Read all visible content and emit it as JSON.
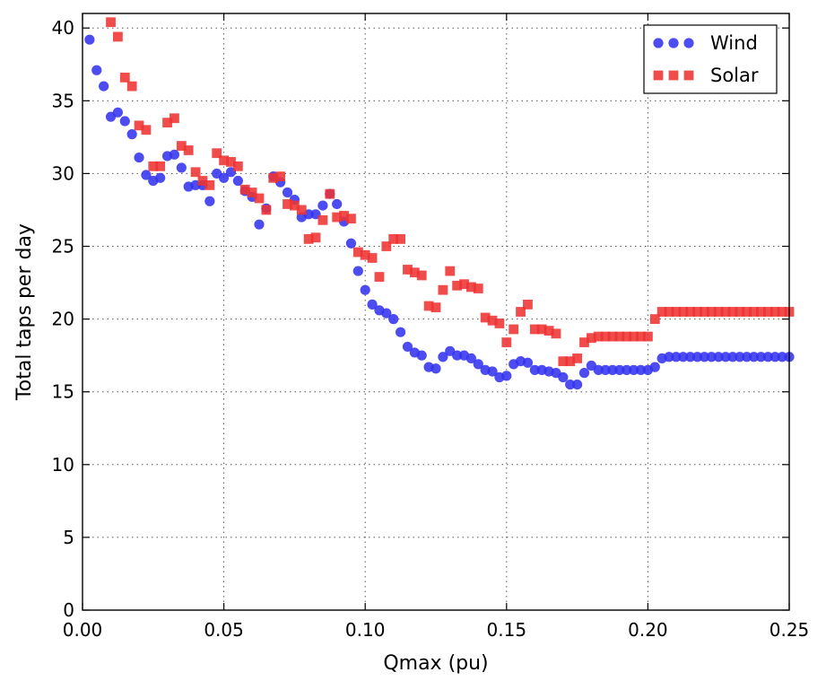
{
  "chart_data": {
    "type": "scatter",
    "title": "",
    "xlabel": "Qmax (pu)",
    "ylabel": "Total taps per day",
    "xlim": [
      0.0,
      0.25
    ],
    "ylim": [
      0,
      41
    ],
    "x_ticks": [
      0.0,
      0.05,
      0.1,
      0.15,
      0.2,
      0.25
    ],
    "x_tick_labels": [
      "0.00",
      "0.05",
      "0.10",
      "0.15",
      "0.20",
      "0.25"
    ],
    "y_ticks": [
      0,
      5,
      10,
      15,
      20,
      25,
      30,
      35,
      40
    ],
    "y_tick_labels": [
      "0",
      "5",
      "10",
      "15",
      "20",
      "25",
      "30",
      "35",
      "40"
    ],
    "grid": true,
    "legend_position": "top-right",
    "series": [
      {
        "name": "Wind",
        "marker": "circle",
        "color": "#3333ee",
        "points": [
          [
            0.0025,
            39.2
          ],
          [
            0.005,
            37.1
          ],
          [
            0.0075,
            36.0
          ],
          [
            0.01,
            33.9
          ],
          [
            0.0125,
            34.2
          ],
          [
            0.015,
            33.6
          ],
          [
            0.0175,
            32.7
          ],
          [
            0.02,
            31.1
          ],
          [
            0.0225,
            29.9
          ],
          [
            0.025,
            29.5
          ],
          [
            0.0275,
            29.7
          ],
          [
            0.03,
            31.2
          ],
          [
            0.0325,
            31.3
          ],
          [
            0.035,
            30.4
          ],
          [
            0.0375,
            29.1
          ],
          [
            0.04,
            29.2
          ],
          [
            0.0425,
            29.2
          ],
          [
            0.045,
            28.1
          ],
          [
            0.0475,
            30.0
          ],
          [
            0.05,
            29.7
          ],
          [
            0.0525,
            30.1
          ],
          [
            0.055,
            29.5
          ],
          [
            0.0575,
            28.8
          ],
          [
            0.06,
            28.4
          ],
          [
            0.0625,
            26.5
          ],
          [
            0.065,
            27.6
          ],
          [
            0.0675,
            29.8
          ],
          [
            0.07,
            29.4
          ],
          [
            0.0725,
            28.7
          ],
          [
            0.075,
            28.2
          ],
          [
            0.0775,
            27.0
          ],
          [
            0.08,
            27.2
          ],
          [
            0.0825,
            27.2
          ],
          [
            0.085,
            27.8
          ],
          [
            0.0875,
            28.6
          ],
          [
            0.09,
            27.9
          ],
          [
            0.0925,
            26.7
          ],
          [
            0.095,
            25.2
          ],
          [
            0.0975,
            23.3
          ],
          [
            0.1,
            22.0
          ],
          [
            0.1025,
            21.0
          ],
          [
            0.105,
            20.6
          ],
          [
            0.1075,
            20.4
          ],
          [
            0.11,
            20.0
          ],
          [
            0.1125,
            19.1
          ],
          [
            0.115,
            18.1
          ],
          [
            0.1175,
            17.7
          ],
          [
            0.12,
            17.5
          ],
          [
            0.1225,
            16.7
          ],
          [
            0.125,
            16.6
          ],
          [
            0.1275,
            17.4
          ],
          [
            0.13,
            17.8
          ],
          [
            0.1325,
            17.5
          ],
          [
            0.135,
            17.5
          ],
          [
            0.1375,
            17.3
          ],
          [
            0.14,
            16.9
          ],
          [
            0.1425,
            16.5
          ],
          [
            0.145,
            16.4
          ],
          [
            0.1475,
            16.0
          ],
          [
            0.15,
            16.1
          ],
          [
            0.1525,
            16.9
          ],
          [
            0.155,
            17.1
          ],
          [
            0.1575,
            17.0
          ],
          [
            0.16,
            16.5
          ],
          [
            0.1625,
            16.5
          ],
          [
            0.165,
            16.4
          ],
          [
            0.1675,
            16.3
          ],
          [
            0.17,
            16.0
          ],
          [
            0.1725,
            15.5
          ],
          [
            0.175,
            15.5
          ],
          [
            0.1775,
            16.3
          ],
          [
            0.18,
            16.8
          ],
          [
            0.1825,
            16.5
          ],
          [
            0.185,
            16.5
          ],
          [
            0.1875,
            16.5
          ],
          [
            0.19,
            16.5
          ],
          [
            0.1925,
            16.5
          ],
          [
            0.195,
            16.5
          ],
          [
            0.1975,
            16.5
          ],
          [
            0.2,
            16.5
          ],
          [
            0.2025,
            16.7
          ],
          [
            0.205,
            17.3
          ],
          [
            0.2075,
            17.4
          ],
          [
            0.21,
            17.4
          ],
          [
            0.2125,
            17.4
          ],
          [
            0.215,
            17.4
          ],
          [
            0.2175,
            17.4
          ],
          [
            0.22,
            17.4
          ],
          [
            0.2225,
            17.4
          ],
          [
            0.225,
            17.4
          ],
          [
            0.2275,
            17.4
          ],
          [
            0.23,
            17.4
          ],
          [
            0.2325,
            17.4
          ],
          [
            0.235,
            17.4
          ],
          [
            0.2375,
            17.4
          ],
          [
            0.24,
            17.4
          ],
          [
            0.2425,
            17.4
          ],
          [
            0.245,
            17.4
          ],
          [
            0.2475,
            17.4
          ],
          [
            0.25,
            17.4
          ]
        ]
      },
      {
        "name": "Solar",
        "marker": "square",
        "color": "#ee3333",
        "points": [
          [
            0.01,
            40.4
          ],
          [
            0.0125,
            39.4
          ],
          [
            0.015,
            36.6
          ],
          [
            0.0175,
            36.0
          ],
          [
            0.02,
            33.3
          ],
          [
            0.0225,
            33.0
          ],
          [
            0.025,
            30.5
          ],
          [
            0.0275,
            30.5
          ],
          [
            0.03,
            33.5
          ],
          [
            0.0325,
            33.8
          ],
          [
            0.035,
            31.9
          ],
          [
            0.0375,
            31.6
          ],
          [
            0.04,
            30.1
          ],
          [
            0.0425,
            29.5
          ],
          [
            0.045,
            29.2
          ],
          [
            0.0475,
            31.4
          ],
          [
            0.05,
            30.9
          ],
          [
            0.0525,
            30.8
          ],
          [
            0.055,
            30.5
          ],
          [
            0.0575,
            28.9
          ],
          [
            0.06,
            28.7
          ],
          [
            0.0625,
            28.3
          ],
          [
            0.065,
            27.5
          ],
          [
            0.0675,
            29.7
          ],
          [
            0.07,
            29.8
          ],
          [
            0.0725,
            27.9
          ],
          [
            0.075,
            27.8
          ],
          [
            0.0775,
            27.5
          ],
          [
            0.08,
            25.5
          ],
          [
            0.0825,
            25.6
          ],
          [
            0.085,
            26.8
          ],
          [
            0.0875,
            28.6
          ],
          [
            0.09,
            27.0
          ],
          [
            0.0925,
            27.1
          ],
          [
            0.095,
            26.9
          ],
          [
            0.0975,
            24.6
          ],
          [
            0.1,
            24.4
          ],
          [
            0.1025,
            24.2
          ],
          [
            0.105,
            22.9
          ],
          [
            0.1075,
            25.0
          ],
          [
            0.11,
            25.5
          ],
          [
            0.1125,
            25.5
          ],
          [
            0.115,
            23.4
          ],
          [
            0.1175,
            23.2
          ],
          [
            0.12,
            23.0
          ],
          [
            0.1225,
            20.9
          ],
          [
            0.125,
            20.8
          ],
          [
            0.1275,
            22.0
          ],
          [
            0.13,
            23.3
          ],
          [
            0.1325,
            22.3
          ],
          [
            0.135,
            22.4
          ],
          [
            0.1375,
            22.2
          ],
          [
            0.14,
            22.1
          ],
          [
            0.1425,
            20.1
          ],
          [
            0.145,
            19.9
          ],
          [
            0.1475,
            19.7
          ],
          [
            0.15,
            18.4
          ],
          [
            0.1525,
            19.3
          ],
          [
            0.155,
            20.5
          ],
          [
            0.1575,
            21.0
          ],
          [
            0.16,
            19.3
          ],
          [
            0.1625,
            19.3
          ],
          [
            0.165,
            19.2
          ],
          [
            0.1675,
            19.0
          ],
          [
            0.17,
            17.1
          ],
          [
            0.1725,
            17.1
          ],
          [
            0.175,
            17.3
          ],
          [
            0.1775,
            18.4
          ],
          [
            0.18,
            18.7
          ],
          [
            0.1825,
            18.8
          ],
          [
            0.185,
            18.8
          ],
          [
            0.1875,
            18.8
          ],
          [
            0.19,
            18.8
          ],
          [
            0.1925,
            18.8
          ],
          [
            0.195,
            18.8
          ],
          [
            0.1975,
            18.8
          ],
          [
            0.2,
            18.8
          ],
          [
            0.2025,
            20.0
          ],
          [
            0.205,
            20.5
          ],
          [
            0.2075,
            20.5
          ],
          [
            0.21,
            20.5
          ],
          [
            0.2125,
            20.5
          ],
          [
            0.215,
            20.5
          ],
          [
            0.2175,
            20.5
          ],
          [
            0.22,
            20.5
          ],
          [
            0.2225,
            20.5
          ],
          [
            0.225,
            20.5
          ],
          [
            0.2275,
            20.5
          ],
          [
            0.23,
            20.5
          ],
          [
            0.2325,
            20.5
          ],
          [
            0.235,
            20.5
          ],
          [
            0.2375,
            20.5
          ],
          [
            0.24,
            20.5
          ],
          [
            0.2425,
            20.5
          ],
          [
            0.245,
            20.5
          ],
          [
            0.2475,
            20.5
          ],
          [
            0.25,
            20.5
          ]
        ]
      }
    ]
  }
}
